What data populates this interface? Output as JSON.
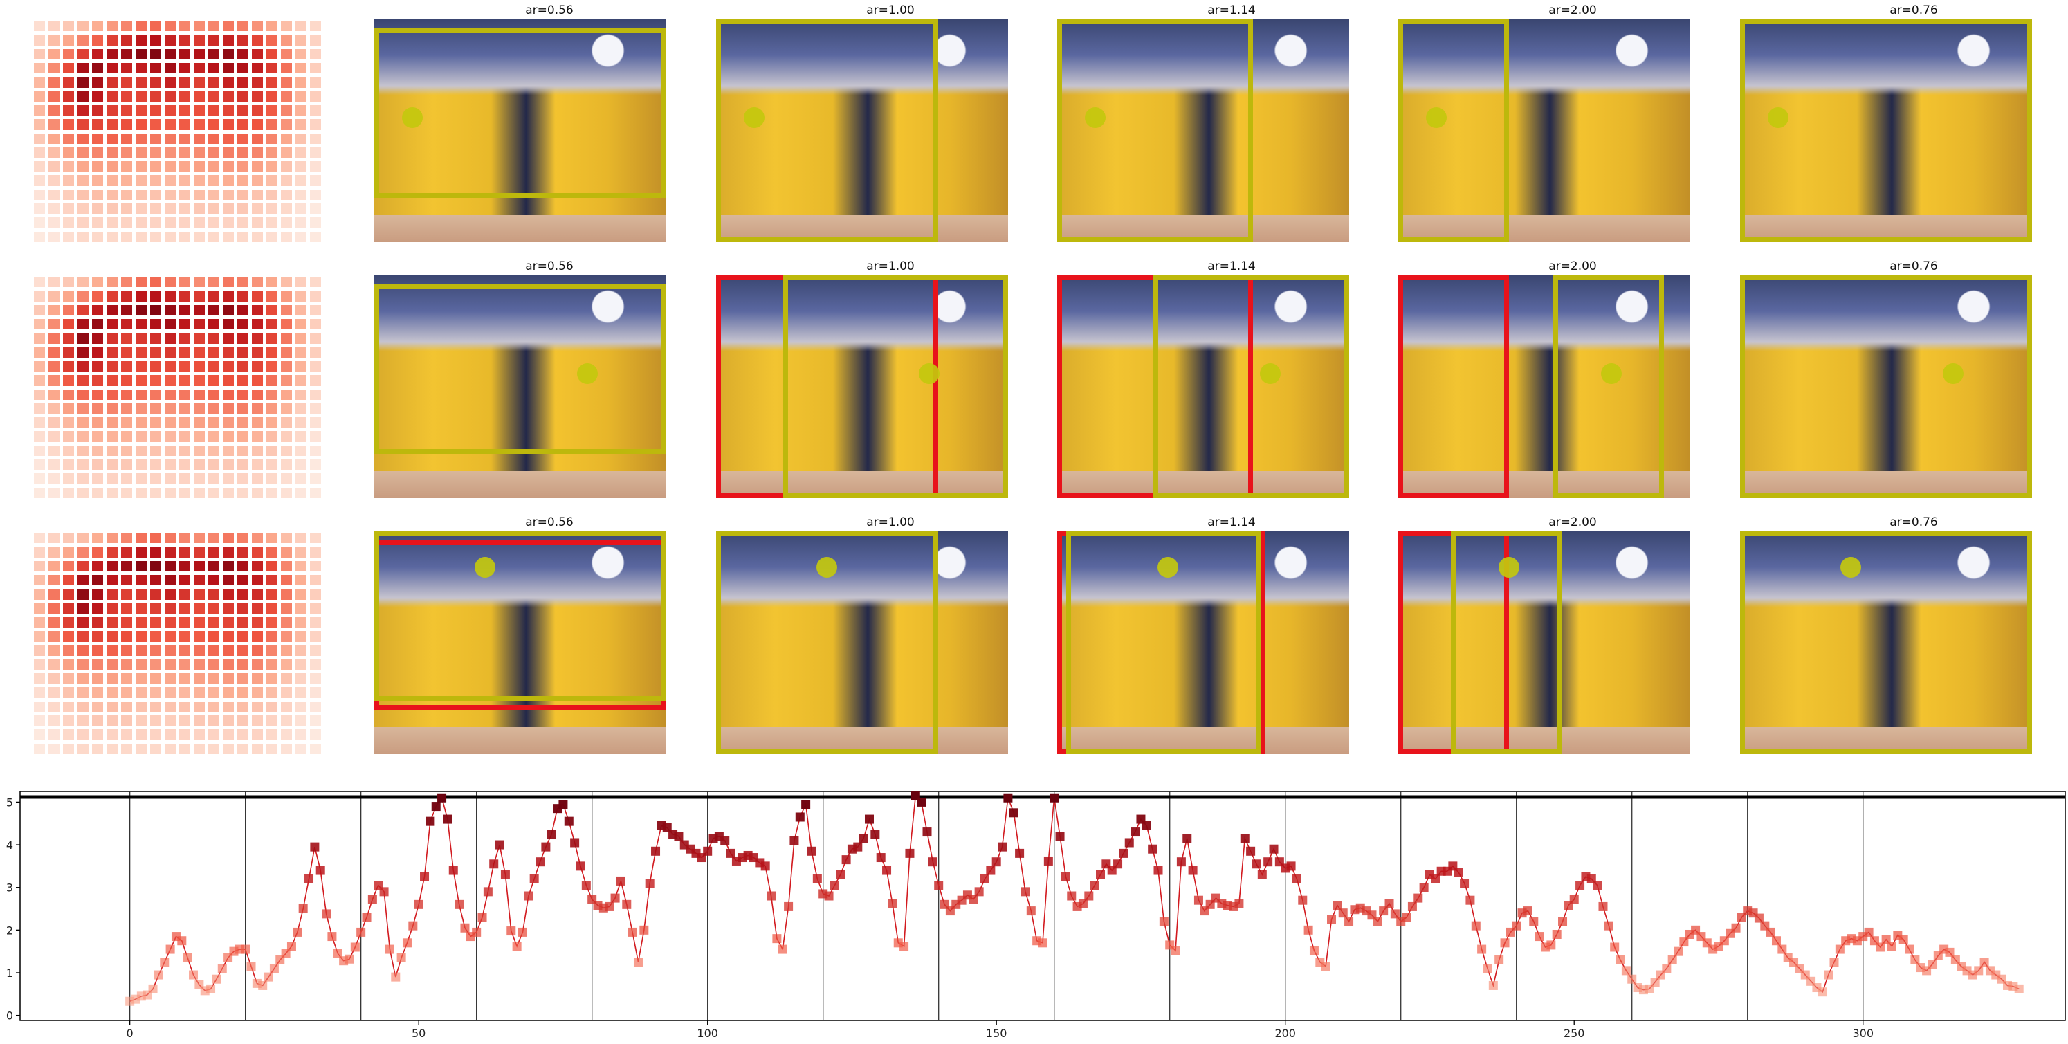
{
  "colors": {
    "yellow_box": "#bdb80c",
    "red_box": "#e8131b",
    "dot": "#c3c80e",
    "line": "#d21a1f",
    "heat_light": "#fde7dc",
    "heat_dark": "#67000d"
  },
  "heatmap": {
    "rows": [
      [
        0.06,
        0.1,
        0.14,
        0.18,
        0.24,
        0.3,
        0.36,
        0.42,
        0.44,
        0.4,
        0.36,
        0.34,
        0.36,
        0.4,
        0.38,
        0.32,
        0.26,
        0.18,
        0.12,
        0.08
      ],
      [
        0.1,
        0.18,
        0.26,
        0.36,
        0.46,
        0.58,
        0.66,
        0.74,
        0.76,
        0.7,
        0.64,
        0.6,
        0.66,
        0.7,
        0.64,
        0.56,
        0.44,
        0.3,
        0.18,
        0.1
      ],
      [
        0.14,
        0.26,
        0.4,
        0.58,
        0.72,
        0.8,
        0.84,
        0.9,
        0.92,
        0.86,
        0.8,
        0.78,
        0.84,
        0.88,
        0.8,
        0.7,
        0.54,
        0.36,
        0.2,
        0.1
      ],
      [
        0.18,
        0.34,
        0.54,
        0.8,
        0.86,
        0.74,
        0.7,
        0.72,
        0.78,
        0.82,
        0.74,
        0.7,
        0.76,
        0.82,
        0.78,
        0.72,
        0.6,
        0.42,
        0.24,
        0.12
      ],
      [
        0.2,
        0.4,
        0.6,
        0.88,
        0.8,
        0.62,
        0.58,
        0.6,
        0.64,
        0.7,
        0.62,
        0.58,
        0.62,
        0.7,
        0.7,
        0.66,
        0.56,
        0.4,
        0.24,
        0.12
      ],
      [
        0.22,
        0.42,
        0.62,
        0.82,
        0.74,
        0.6,
        0.56,
        0.56,
        0.58,
        0.6,
        0.56,
        0.54,
        0.56,
        0.6,
        0.62,
        0.6,
        0.52,
        0.38,
        0.22,
        0.12
      ],
      [
        0.2,
        0.4,
        0.58,
        0.7,
        0.66,
        0.58,
        0.56,
        0.54,
        0.54,
        0.54,
        0.52,
        0.52,
        0.54,
        0.56,
        0.58,
        0.56,
        0.48,
        0.36,
        0.22,
        0.1
      ],
      [
        0.18,
        0.34,
        0.48,
        0.56,
        0.56,
        0.54,
        0.52,
        0.5,
        0.48,
        0.48,
        0.48,
        0.48,
        0.5,
        0.52,
        0.52,
        0.5,
        0.42,
        0.32,
        0.2,
        0.1
      ],
      [
        0.14,
        0.26,
        0.38,
        0.44,
        0.46,
        0.46,
        0.44,
        0.42,
        0.4,
        0.4,
        0.4,
        0.42,
        0.44,
        0.46,
        0.46,
        0.44,
        0.36,
        0.26,
        0.16,
        0.08
      ],
      [
        0.1,
        0.18,
        0.28,
        0.34,
        0.36,
        0.36,
        0.34,
        0.32,
        0.32,
        0.32,
        0.32,
        0.34,
        0.36,
        0.38,
        0.38,
        0.36,
        0.3,
        0.22,
        0.12,
        0.06
      ],
      [
        0.08,
        0.14,
        0.2,
        0.26,
        0.28,
        0.28,
        0.26,
        0.26,
        0.26,
        0.26,
        0.26,
        0.28,
        0.28,
        0.3,
        0.3,
        0.28,
        0.24,
        0.16,
        0.1,
        0.05
      ],
      [
        0.06,
        0.1,
        0.16,
        0.2,
        0.22,
        0.22,
        0.22,
        0.2,
        0.2,
        0.2,
        0.2,
        0.22,
        0.22,
        0.24,
        0.24,
        0.22,
        0.18,
        0.12,
        0.08,
        0.04
      ],
      [
        0.04,
        0.08,
        0.12,
        0.16,
        0.18,
        0.18,
        0.18,
        0.16,
        0.16,
        0.16,
        0.16,
        0.18,
        0.18,
        0.18,
        0.18,
        0.16,
        0.14,
        0.1,
        0.06,
        0.03
      ],
      [
        0.03,
        0.06,
        0.1,
        0.12,
        0.14,
        0.14,
        0.14,
        0.12,
        0.12,
        0.12,
        0.12,
        0.14,
        0.14,
        0.14,
        0.14,
        0.12,
        0.1,
        0.08,
        0.05,
        0.02
      ],
      [
        0.02,
        0.04,
        0.08,
        0.1,
        0.1,
        0.1,
        0.1,
        0.1,
        0.1,
        0.1,
        0.1,
        0.1,
        0.1,
        0.1,
        0.1,
        0.1,
        0.08,
        0.06,
        0.04,
        0.02
      ],
      [
        0.02,
        0.03,
        0.06,
        0.08,
        0.08,
        0.08,
        0.08,
        0.08,
        0.08,
        0.08,
        0.08,
        0.08,
        0.08,
        0.08,
        0.08,
        0.08,
        0.06,
        0.05,
        0.03,
        0.02
      ]
    ]
  },
  "panels": [
    [
      {
        "title": "ar=0.56",
        "boxes": [
          {
            "color": "yellow",
            "f": [
              0.0,
              0.04,
              1.0,
              0.76
            ]
          }
        ],
        "dot": [
          0.13,
          0.44
        ]
      },
      {
        "title": "ar=1.00",
        "boxes": [
          {
            "color": "yellow",
            "f": [
              0.0,
              0.0,
              0.76,
              1.0
            ]
          }
        ],
        "dot": [
          0.13,
          0.44
        ]
      },
      {
        "title": "ar=1.14",
        "boxes": [
          {
            "color": "yellow",
            "f": [
              0.0,
              0.0,
              0.67,
              1.0
            ]
          }
        ],
        "dot": [
          0.13,
          0.44
        ]
      },
      {
        "title": "ar=2.00",
        "boxes": [
          {
            "color": "yellow",
            "f": [
              0.0,
              0.0,
              0.38,
              1.0
            ]
          }
        ],
        "dot": [
          0.13,
          0.44
        ]
      },
      {
        "title": "ar=0.76",
        "boxes": [
          {
            "color": "yellow",
            "f": [
              0.0,
              0.0,
              1.0,
              1.0
            ]
          }
        ],
        "dot": [
          0.13,
          0.44
        ]
      }
    ],
    [
      {
        "title": "ar=0.56",
        "boxes": [
          {
            "color": "yellow",
            "f": [
              0.0,
              0.04,
              1.0,
              0.76
            ]
          }
        ],
        "dot": [
          0.73,
          0.44
        ]
      },
      {
        "title": "ar=1.00",
        "boxes": [
          {
            "color": "red",
            "f": [
              0.0,
              0.0,
              0.76,
              1.0
            ]
          },
          {
            "color": "yellow",
            "f": [
              0.23,
              0.0,
              0.77,
              1.0
            ]
          }
        ],
        "dot": [
          0.73,
          0.44
        ]
      },
      {
        "title": "ar=1.14",
        "boxes": [
          {
            "color": "red",
            "f": [
              0.0,
              0.0,
              0.67,
              1.0
            ]
          },
          {
            "color": "yellow",
            "f": [
              0.33,
              0.0,
              0.67,
              1.0
            ]
          }
        ],
        "dot": [
          0.73,
          0.44
        ]
      },
      {
        "title": "ar=2.00",
        "boxes": [
          {
            "color": "red",
            "f": [
              0.0,
              0.0,
              0.38,
              1.0
            ]
          },
          {
            "color": "yellow",
            "f": [
              0.53,
              0.0,
              0.38,
              1.0
            ]
          }
        ],
        "dot": [
          0.73,
          0.44
        ]
      },
      {
        "title": "ar=0.76",
        "boxes": [
          {
            "color": "yellow",
            "f": [
              0.0,
              0.0,
              1.0,
              1.0
            ]
          }
        ],
        "dot": [
          0.73,
          0.44
        ]
      }
    ],
    [
      {
        "title": "ar=0.56",
        "boxes": [
          {
            "color": "red",
            "f": [
              0.0,
              0.04,
              1.0,
              0.76
            ]
          },
          {
            "color": "yellow",
            "f": [
              0.0,
              0.0,
              1.0,
              0.76
            ]
          }
        ],
        "dot": [
          0.38,
          0.16
        ]
      },
      {
        "title": "ar=1.00",
        "boxes": [
          {
            "color": "yellow",
            "f": [
              0.0,
              0.0,
              0.76,
              1.0
            ]
          }
        ],
        "dot": [
          0.38,
          0.16
        ]
      },
      {
        "title": "ar=1.14",
        "boxes": [
          {
            "color": "red",
            "f": [
              0.0,
              0.0,
              0.71,
              1.0
            ]
          },
          {
            "color": "yellow",
            "f": [
              0.03,
              0.0,
              0.67,
              1.0
            ]
          }
        ],
        "dot": [
          0.38,
          0.16
        ]
      },
      {
        "title": "ar=2.00",
        "boxes": [
          {
            "color": "red",
            "f": [
              0.0,
              0.0,
              0.38,
              1.0
            ]
          },
          {
            "color": "yellow",
            "f": [
              0.18,
              0.0,
              0.38,
              1.0
            ]
          }
        ],
        "dot": [
          0.38,
          0.16
        ]
      },
      {
        "title": "ar=0.76",
        "boxes": [
          {
            "color": "yellow",
            "f": [
              0.0,
              0.0,
              1.0,
              1.0
            ]
          }
        ],
        "dot": [
          0.38,
          0.16
        ]
      }
    ]
  ],
  "chart_data": {
    "type": "line",
    "title": "",
    "xlabel": "",
    "ylabel": "",
    "xlim": [
      -19,
      335
    ],
    "ylim": [
      -0.12,
      5.25
    ],
    "xticks": [
      0,
      50,
      100,
      150,
      200,
      250,
      300
    ],
    "xtick_labels": [
      "0",
      "50",
      "100",
      "150",
      "200",
      "250",
      "300"
    ],
    "yticks": [
      0,
      1,
      2,
      3,
      4,
      5
    ],
    "ytick_labels": [
      "0",
      "1",
      "2",
      "3",
      "4",
      "5"
    ],
    "vlines": [
      0,
      20,
      40,
      60,
      80,
      100,
      120,
      140,
      160,
      180,
      200,
      220,
      240,
      260,
      280,
      300
    ],
    "hline": 5.12,
    "marker": "square",
    "values": [
      0.33,
      0.38,
      0.45,
      0.48,
      0.62,
      0.95,
      1.25,
      1.55,
      1.85,
      1.75,
      1.35,
      0.95,
      0.72,
      0.58,
      0.62,
      0.85,
      1.1,
      1.35,
      1.5,
      1.55,
      1.55,
      1.15,
      0.75,
      0.7,
      0.9,
      1.1,
      1.3,
      1.45,
      1.62,
      1.95,
      2.5,
      3.2,
      3.95,
      3.4,
      2.38,
      1.85,
      1.45,
      1.28,
      1.32,
      1.6,
      1.95,
      2.3,
      2.72,
      3.05,
      2.9,
      1.55,
      0.9,
      1.35,
      1.7,
      2.1,
      2.6,
      3.25,
      4.55,
      4.9,
      5.1,
      4.6,
      3.4,
      2.6,
      2.05,
      1.85,
      1.95,
      2.3,
      2.9,
      3.55,
      4.0,
      3.3,
      1.98,
      1.62,
      1.95,
      2.8,
      3.2,
      3.6,
      3.95,
      4.25,
      4.85,
      4.95,
      4.55,
      4.05,
      3.5,
      3.05,
      2.72,
      2.58,
      2.52,
      2.55,
      2.75,
      3.15,
      2.6,
      1.95,
      1.25,
      2.0,
      3.1,
      3.85,
      4.45,
      4.4,
      4.25,
      4.2,
      4.0,
      3.9,
      3.8,
      3.7,
      3.85,
      4.15,
      4.2,
      4.1,
      3.8,
      3.62,
      3.7,
      3.75,
      3.7,
      3.58,
      3.5,
      2.8,
      1.8,
      1.55,
      2.55,
      4.1,
      4.65,
      4.95,
      3.85,
      3.2,
      2.85,
      2.8,
      3.05,
      3.3,
      3.65,
      3.9,
      3.95,
      4.15,
      4.6,
      4.25,
      3.7,
      3.4,
      2.62,
      1.7,
      1.62,
      3.8,
      5.15,
      5.0,
      4.3,
      3.6,
      3.05,
      2.6,
      2.45,
      2.6,
      2.7,
      2.82,
      2.72,
      2.9,
      3.2,
      3.4,
      3.6,
      3.95,
      5.1,
      4.75,
      3.8,
      2.9,
      2.45,
      1.75,
      1.7,
      3.62,
      5.1,
      4.2,
      3.25,
      2.8,
      2.55,
      2.62,
      2.8,
      3.05,
      3.3,
      3.55,
      3.4,
      3.55,
      3.8,
      4.05,
      4.3,
      4.6,
      4.45,
      3.9,
      3.4,
      2.2,
      1.65,
      1.52,
      3.6,
      4.15,
      3.4,
      2.7,
      2.45,
      2.6,
      2.75,
      2.62,
      2.58,
      2.55,
      2.62,
      4.15,
      3.85,
      3.55,
      3.3,
      3.6,
      3.9,
      3.6,
      3.45,
      3.5,
      3.2,
      2.7,
      2.0,
      1.52,
      1.25,
      1.15,
      2.25,
      2.58,
      2.4,
      2.2,
      2.48,
      2.52,
      2.45,
      2.35,
      2.2,
      2.45,
      2.62,
      2.38,
      2.2,
      2.3,
      2.55,
      2.75,
      3.0,
      3.3,
      3.2,
      3.38,
      3.38,
      3.5,
      3.35,
      3.1,
      2.7,
      2.1,
      1.55,
      1.1,
      0.7,
      1.3,
      1.7,
      1.95,
      2.1,
      2.4,
      2.45,
      2.2,
      1.85,
      1.6,
      1.65,
      1.9,
      2.2,
      2.58,
      2.72,
      3.05,
      3.25,
      3.2,
      3.05,
      2.55,
      2.1,
      1.6,
      1.3,
      1.05,
      0.85,
      0.65,
      0.6,
      0.62,
      0.78,
      0.95,
      1.1,
      1.3,
      1.5,
      1.72,
      1.9,
      2.0,
      1.85,
      1.7,
      1.55,
      1.62,
      1.75,
      1.92,
      2.05,
      2.3,
      2.45,
      2.4,
      2.28,
      2.1,
      1.95,
      1.75,
      1.55,
      1.35,
      1.25,
      1.1,
      0.95,
      0.8,
      0.65,
      0.55,
      0.95,
      1.25,
      1.55,
      1.75,
      1.8,
      1.75,
      1.85,
      1.95,
      1.75,
      1.6,
      1.78,
      1.62,
      1.88,
      1.78,
      1.55,
      1.3,
      1.12,
      1.05,
      1.2,
      1.4,
      1.55,
      1.48,
      1.3,
      1.15,
      1.05,
      0.95,
      1.05,
      1.25,
      1.05,
      0.95,
      0.85,
      0.7,
      0.68,
      0.62
    ]
  }
}
